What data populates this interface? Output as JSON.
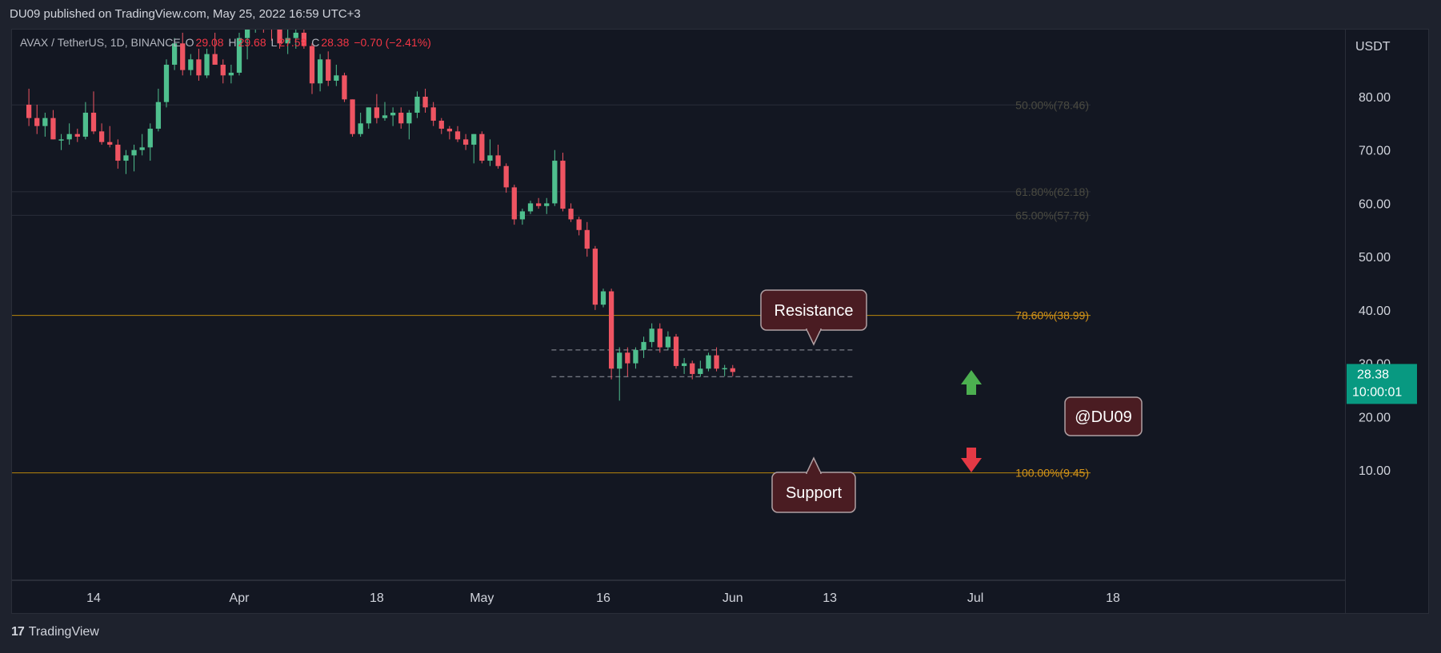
{
  "header": {
    "published": "DU09 published on TradingView.com, May 25, 2022 16:59 UTC+3"
  },
  "symbol": {
    "name": "AVAX / TetherUS, 1D, BINANCE",
    "open_label": "O",
    "open_value": "29.08",
    "high_label": "H",
    "high_value": "29.68",
    "low_label": "L",
    "low_value": "27.59",
    "close_label": "C",
    "close_value": "28.38",
    "change": "−0.70 (−2.41%)"
  },
  "price_axis": {
    "currency": "USDT",
    "last_price": "28.38",
    "countdown": "10:00:01"
  },
  "footer": {
    "brand": "TradingView",
    "logo_glyph": "17"
  },
  "colors": {
    "up": "#26a69a",
    "up_fill": "#4fbf8e",
    "down": "#f23645",
    "down_fill": "#ef5462",
    "fib": "#b8860b",
    "label_bg": "#4a1c22",
    "label_border": "#b0a0a3",
    "arrow_up": "#4caf50",
    "arrow_down": "#e53945",
    "last_price_bg": "#089981"
  },
  "chart_data": {
    "type": "candlestick",
    "title": "AVAX / TetherUS, 1D, BINANCE",
    "ylabel": "USDT",
    "ylim": [
      0,
      88
    ],
    "y_ticks": [
      10,
      20,
      30,
      40,
      50,
      60,
      70,
      80
    ],
    "y_tick_labels": [
      "10.00",
      "20.00",
      "30.00",
      "40.00",
      "50.00",
      "60.00",
      "70.00",
      "80.00"
    ],
    "x_tick_labels": [
      "14",
      "Apr",
      "18",
      "May",
      "16",
      "Jun",
      "13",
      "Jul",
      "18"
    ],
    "x_tick_dates": [
      "2022-03-14",
      "2022-04-01",
      "2022-04-18",
      "2022-05-01",
      "2022-05-16",
      "2022-06-01",
      "2022-06-13",
      "2022-07-01",
      "2022-07-18"
    ],
    "fib_levels": [
      {
        "label": "50.00%(78.46)",
        "value": 78.46
      },
      {
        "label": "61.80%(62.18)",
        "value": 62.18
      },
      {
        "label": "65.00%(57.76)",
        "value": 57.76
      },
      {
        "label": "78.60%(38.99)",
        "value": 38.99
      },
      {
        "label": "100.00%(9.45)",
        "value": 9.45
      }
    ],
    "range_lines": [
      32.5,
      27.5
    ],
    "annotations": [
      {
        "text": "Resistance"
      },
      {
        "text": "Support"
      },
      {
        "text": "@DU09"
      }
    ],
    "candles": [
      {
        "date": "2022-03-06",
        "o": 78.5,
        "h": 81.5,
        "l": 74.5,
        "c": 76.0
      },
      {
        "date": "2022-03-07",
        "o": 76.0,
        "h": 78.5,
        "l": 73.0,
        "c": 74.5
      },
      {
        "date": "2022-03-08",
        "o": 74.5,
        "h": 77.0,
        "l": 72.5,
        "c": 76.0
      },
      {
        "date": "2022-03-09",
        "o": 76.0,
        "h": 77.5,
        "l": 72.0,
        "c": 72.0
      },
      {
        "date": "2022-03-10",
        "o": 72.0,
        "h": 73.0,
        "l": 70.0,
        "c": 72.0
      },
      {
        "date": "2022-03-11",
        "o": 72.0,
        "h": 75.0,
        "l": 71.0,
        "c": 73.0
      },
      {
        "date": "2022-03-12",
        "o": 73.0,
        "h": 74.0,
        "l": 71.5,
        "c": 72.5
      },
      {
        "date": "2022-03-13",
        "o": 72.5,
        "h": 79.0,
        "l": 72.0,
        "c": 77.0
      },
      {
        "date": "2022-03-14",
        "o": 77.0,
        "h": 81.0,
        "l": 73.0,
        "c": 73.5
      },
      {
        "date": "2022-03-15",
        "o": 73.5,
        "h": 75.0,
        "l": 71.0,
        "c": 71.5
      },
      {
        "date": "2022-03-16",
        "o": 71.5,
        "h": 74.5,
        "l": 70.5,
        "c": 71.0
      },
      {
        "date": "2022-03-17",
        "o": 71.0,
        "h": 72.0,
        "l": 66.5,
        "c": 68.0
      },
      {
        "date": "2022-03-18",
        "o": 68.0,
        "h": 70.0,
        "l": 65.5,
        "c": 69.0
      },
      {
        "date": "2022-03-19",
        "o": 69.0,
        "h": 71.0,
        "l": 66.0,
        "c": 70.0
      },
      {
        "date": "2022-03-20",
        "o": 70.0,
        "h": 73.0,
        "l": 69.0,
        "c": 70.5
      },
      {
        "date": "2022-03-21",
        "o": 70.5,
        "h": 75.0,
        "l": 68.0,
        "c": 74.0
      },
      {
        "date": "2022-03-22",
        "o": 74.0,
        "h": 81.5,
        "l": 73.5,
        "c": 79.0
      },
      {
        "date": "2022-03-23",
        "o": 79.0,
        "h": 87.0,
        "l": 78.0,
        "c": 86.0
      },
      {
        "date": "2022-03-24",
        "o": 86.0,
        "h": 91.0,
        "l": 85.0,
        "c": 90.0
      },
      {
        "date": "2022-03-25",
        "o": 90.0,
        "h": 92.0,
        "l": 84.0,
        "c": 85.0
      },
      {
        "date": "2022-03-26",
        "o": 85.0,
        "h": 88.0,
        "l": 84.0,
        "c": 87.0
      },
      {
        "date": "2022-03-27",
        "o": 87.0,
        "h": 89.0,
        "l": 83.0,
        "c": 84.0
      },
      {
        "date": "2022-03-28",
        "o": 84.0,
        "h": 89.0,
        "l": 83.5,
        "c": 88.0
      },
      {
        "date": "2022-03-29",
        "o": 88.0,
        "h": 92.0,
        "l": 86.0,
        "c": 86.0
      },
      {
        "date": "2022-03-30",
        "o": 86.0,
        "h": 87.0,
        "l": 82.5,
        "c": 84.0
      },
      {
        "date": "2022-03-31",
        "o": 84.0,
        "h": 86.0,
        "l": 82.5,
        "c": 84.5
      },
      {
        "date": "2022-04-01",
        "o": 84.5,
        "h": 92.0,
        "l": 84.0,
        "c": 91.0
      },
      {
        "date": "2022-04-02",
        "o": 91.0,
        "h": 95.0,
        "l": 87.0,
        "c": 93.0
      },
      {
        "date": "2022-04-03",
        "o": 93.0,
        "h": 96.0,
        "l": 92.0,
        "c": 95.0
      },
      {
        "date": "2022-04-04",
        "o": 95.0,
        "h": 97.0,
        "l": 92.0,
        "c": 94.0
      },
      {
        "date": "2022-04-05",
        "o": 94.0,
        "h": 95.5,
        "l": 90.5,
        "c": 93.0
      },
      {
        "date": "2022-04-06",
        "o": 93.0,
        "h": 94.0,
        "l": 89.0,
        "c": 90.0
      },
      {
        "date": "2022-04-07",
        "o": 90.0,
        "h": 94.0,
        "l": 88.0,
        "c": 91.0
      },
      {
        "date": "2022-04-08",
        "o": 91.0,
        "h": 93.0,
        "l": 89.0,
        "c": 92.0
      },
      {
        "date": "2022-04-09",
        "o": 92.0,
        "h": 93.5,
        "l": 89.0,
        "c": 89.5
      },
      {
        "date": "2022-04-10",
        "o": 89.5,
        "h": 90.0,
        "l": 80.5,
        "c": 82.5
      },
      {
        "date": "2022-04-11",
        "o": 82.5,
        "h": 88.0,
        "l": 81.0,
        "c": 87.0
      },
      {
        "date": "2022-04-12",
        "o": 87.0,
        "h": 88.5,
        "l": 82.0,
        "c": 83.0
      },
      {
        "date": "2022-04-13",
        "o": 83.0,
        "h": 86.0,
        "l": 82.0,
        "c": 84.0
      },
      {
        "date": "2022-04-14",
        "o": 84.0,
        "h": 84.5,
        "l": 79.0,
        "c": 79.5
      },
      {
        "date": "2022-04-15",
        "o": 79.5,
        "h": 79.5,
        "l": 72.5,
        "c": 73.0
      },
      {
        "date": "2022-04-16",
        "o": 73.0,
        "h": 77.0,
        "l": 72.5,
        "c": 75.0
      },
      {
        "date": "2022-04-17",
        "o": 75.0,
        "h": 78.0,
        "l": 74.0,
        "c": 78.0
      },
      {
        "date": "2022-04-18",
        "o": 78.0,
        "h": 80.5,
        "l": 75.0,
        "c": 76.0
      },
      {
        "date": "2022-04-19",
        "o": 76.0,
        "h": 79.0,
        "l": 75.5,
        "c": 76.5
      },
      {
        "date": "2022-04-20",
        "o": 76.5,
        "h": 78.0,
        "l": 74.5,
        "c": 77.0
      },
      {
        "date": "2022-04-21",
        "o": 77.0,
        "h": 78.0,
        "l": 74.0,
        "c": 75.0
      },
      {
        "date": "2022-04-22",
        "o": 75.0,
        "h": 77.5,
        "l": 72.0,
        "c": 77.0
      },
      {
        "date": "2022-04-23",
        "o": 77.0,
        "h": 81.0,
        "l": 76.0,
        "c": 80.0
      },
      {
        "date": "2022-04-24",
        "o": 80.0,
        "h": 81.5,
        "l": 77.0,
        "c": 78.0
      },
      {
        "date": "2022-04-25",
        "o": 78.0,
        "h": 79.0,
        "l": 74.5,
        "c": 75.5
      },
      {
        "date": "2022-04-26",
        "o": 75.5,
        "h": 76.0,
        "l": 73.0,
        "c": 74.0
      },
      {
        "date": "2022-04-27",
        "o": 74.0,
        "h": 74.5,
        "l": 72.0,
        "c": 73.5
      },
      {
        "date": "2022-04-28",
        "o": 73.5,
        "h": 74.5,
        "l": 71.5,
        "c": 72.0
      },
      {
        "date": "2022-04-29",
        "o": 72.0,
        "h": 73.0,
        "l": 70.0,
        "c": 71.0
      },
      {
        "date": "2022-04-30",
        "o": 71.0,
        "h": 73.0,
        "l": 67.5,
        "c": 73.0
      },
      {
        "date": "2022-05-01",
        "o": 73.0,
        "h": 73.5,
        "l": 67.5,
        "c": 68.0
      },
      {
        "date": "2022-05-02",
        "o": 68.0,
        "h": 72.0,
        "l": 67.0,
        "c": 69.0
      },
      {
        "date": "2022-05-03",
        "o": 69.0,
        "h": 71.0,
        "l": 66.5,
        "c": 67.0
      },
      {
        "date": "2022-05-04",
        "o": 67.0,
        "h": 67.5,
        "l": 62.0,
        "c": 63.0
      },
      {
        "date": "2022-05-05",
        "o": 63.0,
        "h": 63.5,
        "l": 56.0,
        "c": 57.0
      },
      {
        "date": "2022-05-06",
        "o": 57.0,
        "h": 59.0,
        "l": 56.0,
        "c": 58.5
      },
      {
        "date": "2022-05-07",
        "o": 58.5,
        "h": 60.5,
        "l": 58.0,
        "c": 60.0
      },
      {
        "date": "2022-05-08",
        "o": 60.0,
        "h": 61.0,
        "l": 59.0,
        "c": 59.5
      },
      {
        "date": "2022-05-09",
        "o": 59.5,
        "h": 61.0,
        "l": 58.0,
        "c": 60.0
      },
      {
        "date": "2022-05-10",
        "o": 60.0,
        "h": 70.0,
        "l": 59.5,
        "c": 68.0
      },
      {
        "date": "2022-05-11",
        "o": 68.0,
        "h": 69.5,
        "l": 58.5,
        "c": 59.0
      },
      {
        "date": "2022-05-12",
        "o": 59.0,
        "h": 60.0,
        "l": 56.5,
        "c": 57.0
      },
      {
        "date": "2022-05-13",
        "o": 57.0,
        "h": 57.5,
        "l": 54.0,
        "c": 55.0
      },
      {
        "date": "2022-05-14",
        "o": 55.0,
        "h": 56.5,
        "l": 50.0,
        "c": 51.5
      },
      {
        "date": "2022-05-15",
        "o": 51.5,
        "h": 52.0,
        "l": 40.0,
        "c": 41.0
      },
      {
        "date": "2022-05-16",
        "o": 41.0,
        "h": 44.0,
        "l": 40.5,
        "c": 43.5
      },
      {
        "date": "2022-05-17",
        "o": 43.5,
        "h": 44.0,
        "l": 27.0,
        "c": 29.0
      },
      {
        "date": "2022-05-18",
        "o": 29.0,
        "h": 33.0,
        "l": 23.0,
        "c": 32.0
      },
      {
        "date": "2022-05-19",
        "o": 32.0,
        "h": 33.0,
        "l": 27.5,
        "c": 30.0
      },
      {
        "date": "2022-05-20",
        "o": 30.0,
        "h": 33.0,
        "l": 29.0,
        "c": 32.5
      },
      {
        "date": "2022-05-21",
        "o": 32.5,
        "h": 35.0,
        "l": 31.0,
        "c": 34.0
      },
      {
        "date": "2022-05-22",
        "o": 34.0,
        "h": 37.5,
        "l": 33.0,
        "c": 36.5
      },
      {
        "date": "2022-05-23",
        "o": 36.5,
        "h": 37.5,
        "l": 32.0,
        "c": 33.0
      },
      {
        "date": "2022-05-24",
        "o": 33.0,
        "h": 36.0,
        "l": 32.5,
        "c": 35.0
      },
      {
        "date": "2022-05-25",
        "o": 35.0,
        "h": 35.5,
        "l": 29.0,
        "c": 29.5
      },
      {
        "date": "2022-05-26",
        "o": 29.5,
        "h": 31.0,
        "l": 28.0,
        "c": 30.0
      },
      {
        "date": "2022-05-27",
        "o": 30.0,
        "h": 30.5,
        "l": 27.0,
        "c": 28.0
      },
      {
        "date": "2022-05-28",
        "o": 28.0,
        "h": 30.5,
        "l": 27.5,
        "c": 29.0
      },
      {
        "date": "2022-05-29",
        "o": 29.0,
        "h": 32.0,
        "l": 28.5,
        "c": 31.5
      },
      {
        "date": "2022-05-30",
        "o": 31.5,
        "h": 33.0,
        "l": 28.5,
        "c": 29.0
      },
      {
        "date": "2022-05-31",
        "o": 29.0,
        "h": 29.7,
        "l": 27.6,
        "c": 29.1
      },
      {
        "date": "2022-06-01",
        "o": 29.08,
        "h": 29.68,
        "l": 27.59,
        "c": 28.38
      }
    ]
  }
}
